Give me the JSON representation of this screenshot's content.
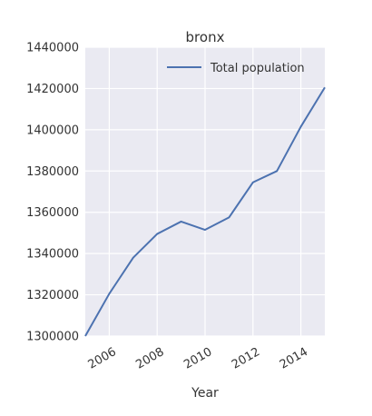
{
  "chart_data": {
    "type": "line",
    "title": "bronx",
    "xlabel": "Year",
    "ylabel": "",
    "x": [
      2005,
      2006,
      2007,
      2008,
      2009,
      2010,
      2011,
      2012,
      2013,
      2014,
      2015
    ],
    "series": [
      {
        "name": "Total population",
        "color": "#4c72b0",
        "values": [
          1300000,
          1320500,
          1338000,
          1349500,
          1355500,
          1351500,
          1357500,
          1374500,
          1380000,
          1401500,
          1420500
        ]
      }
    ],
    "xlim": [
      2005,
      2015
    ],
    "ylim": [
      1300000,
      1440000
    ],
    "xticks": [
      2006,
      2008,
      2010,
      2012,
      2014
    ],
    "yticks": [
      1300000,
      1320000,
      1340000,
      1360000,
      1380000,
      1400000,
      1420000,
      1440000
    ],
    "xtick_labels": [
      "2006",
      "2008",
      "2010",
      "2012",
      "2014"
    ],
    "ytick_labels": [
      "1300000",
      "1320000",
      "1340000",
      "1360000",
      "1380000",
      "1400000",
      "1420000",
      "1440000"
    ],
    "grid": true,
    "legend_position": "top-right",
    "background_color": "#eaeaf2",
    "grid_color": "#ffffff"
  }
}
